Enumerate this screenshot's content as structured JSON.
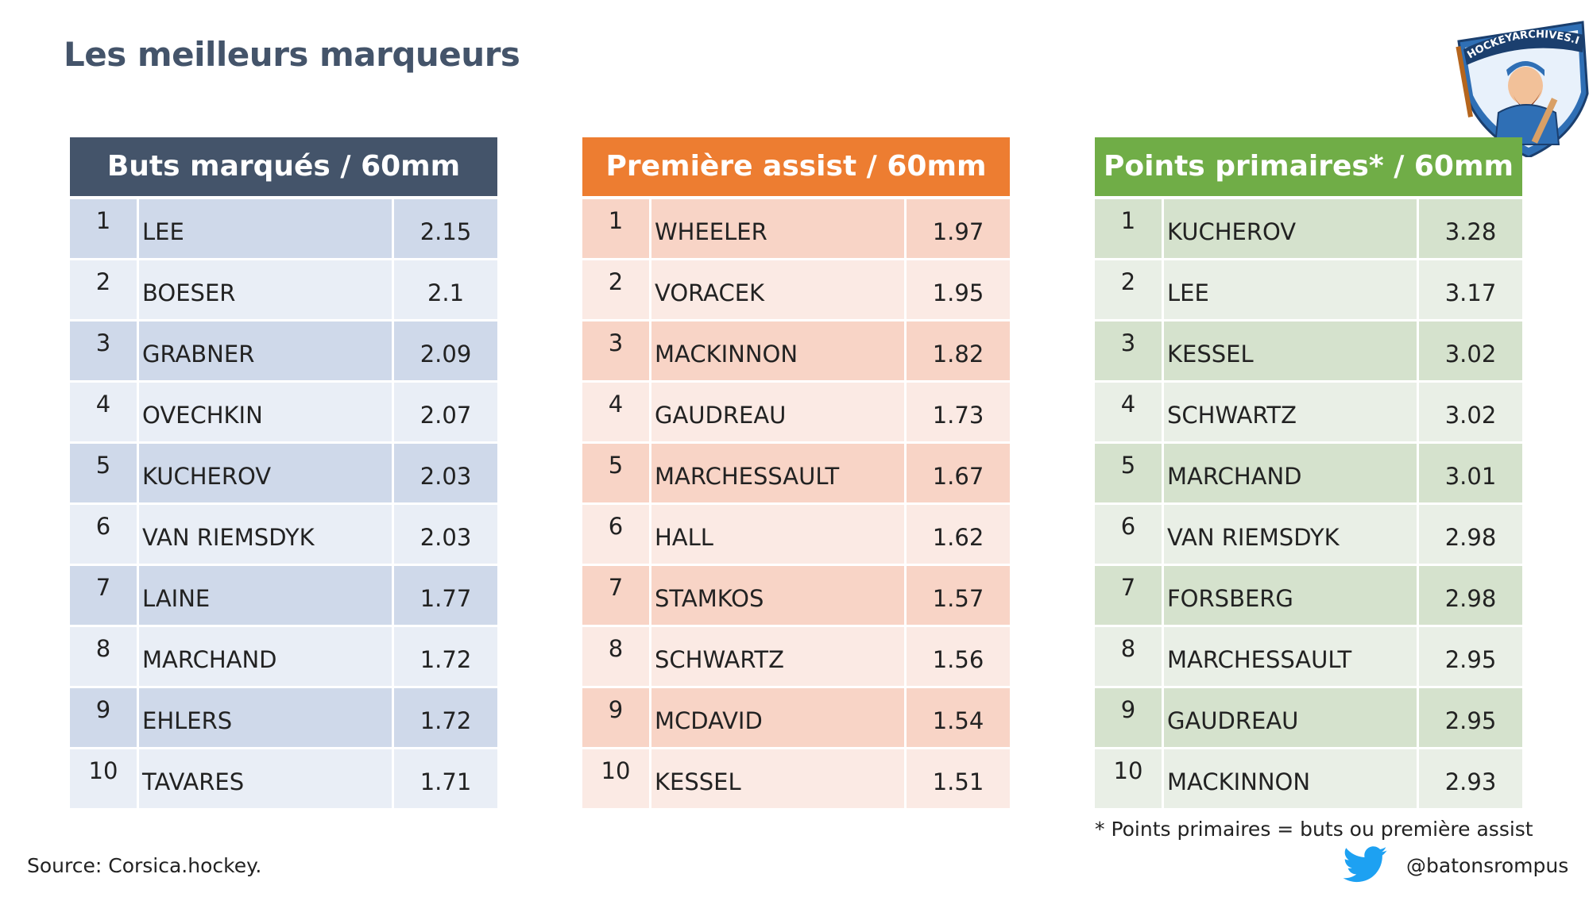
{
  "page": {
    "title": "Les meilleurs marqueurs",
    "footnote": "* Points primaires = buts ou première assist",
    "source": "Source: Corsica.hockey.",
    "twitter_handle": "@batonsrompus",
    "logo_text": "HOCKEYARCHIVES.INFO"
  },
  "colors": {
    "title": "#44546a",
    "buts_header": "#44546a",
    "buts_dark": "#cfd9ea",
    "buts_light": "#e9eef6",
    "assist_header": "#ed7d31",
    "assist_dark": "#f8d4c6",
    "assist_light": "#fbeae4",
    "points_header": "#70ad47",
    "points_dark": "#d5e2cd",
    "points_light": "#e9efe6",
    "twitter": "#1da1f2"
  },
  "tables": [
    {
      "header": "Buts marqués / 60mm",
      "rows": [
        {
          "rank": "1",
          "name": "LEE",
          "value": "2.15"
        },
        {
          "rank": "2",
          "name": "BOESER",
          "value": "2.1"
        },
        {
          "rank": "3",
          "name": "GRABNER",
          "value": "2.09"
        },
        {
          "rank": "4",
          "name": "OVECHKIN",
          "value": "2.07"
        },
        {
          "rank": "5",
          "name": "KUCHEROV",
          "value": "2.03"
        },
        {
          "rank": "6",
          "name": "VAN RIEMSDYK",
          "value": "2.03"
        },
        {
          "rank": "7",
          "name": "LAINE",
          "value": "1.77"
        },
        {
          "rank": "8",
          "name": "MARCHAND",
          "value": "1.72"
        },
        {
          "rank": "9",
          "name": "EHLERS",
          "value": "1.72"
        },
        {
          "rank": "10",
          "name": "TAVARES",
          "value": "1.71"
        }
      ]
    },
    {
      "header": "Première assist / 60mm",
      "rows": [
        {
          "rank": "1",
          "name": "WHEELER",
          "value": "1.97"
        },
        {
          "rank": "2",
          "name": "VORACEK",
          "value": "1.95"
        },
        {
          "rank": "3",
          "name": "MACKINNON",
          "value": "1.82"
        },
        {
          "rank": "4",
          "name": "GAUDREAU",
          "value": "1.73"
        },
        {
          "rank": "5",
          "name": "MARCHESSAULT",
          "value": "1.67"
        },
        {
          "rank": "6",
          "name": "HALL",
          "value": "1.62"
        },
        {
          "rank": "7",
          "name": "STAMKOS",
          "value": "1.57"
        },
        {
          "rank": "8",
          "name": "SCHWARTZ",
          "value": "1.56"
        },
        {
          "rank": "9",
          "name": "MCDAVID",
          "value": "1.54"
        },
        {
          "rank": "10",
          "name": "KESSEL",
          "value": "1.51"
        }
      ]
    },
    {
      "header": "Points primaires* / 60mm",
      "rows": [
        {
          "rank": "1",
          "name": "KUCHEROV",
          "value": "3.28"
        },
        {
          "rank": "2",
          "name": "LEE",
          "value": "3.17"
        },
        {
          "rank": "3",
          "name": "KESSEL",
          "value": "3.02"
        },
        {
          "rank": "4",
          "name": "SCHWARTZ",
          "value": "3.02"
        },
        {
          "rank": "5",
          "name": "MARCHAND",
          "value": "3.01"
        },
        {
          "rank": "6",
          "name": "VAN RIEMSDYK",
          "value": "2.98"
        },
        {
          "rank": "7",
          "name": "FORSBERG",
          "value": "2.98"
        },
        {
          "rank": "8",
          "name": "MARCHESSAULT",
          "value": "2.95"
        },
        {
          "rank": "9",
          "name": "GAUDREAU",
          "value": "2.95"
        },
        {
          "rank": "10",
          "name": "MACKINNON",
          "value": "2.93"
        }
      ]
    }
  ]
}
